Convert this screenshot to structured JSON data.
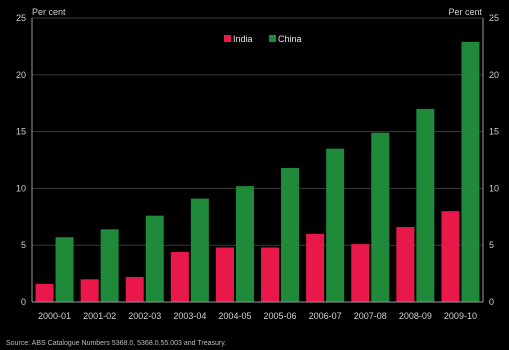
{
  "chart_data": {
    "type": "bar",
    "categories": [
      "2000-01",
      "2001-02",
      "2002-03",
      "2003-04",
      "2004-05",
      "2005-06",
      "2006-07",
      "2007-08",
      "2008-09",
      "2009-10"
    ],
    "series": [
      {
        "name": "India",
        "color": "#e8184a",
        "values": [
          1.6,
          2.0,
          2.2,
          4.4,
          4.8,
          4.8,
          6.0,
          5.1,
          6.6,
          8.0
        ]
      },
      {
        "name": "China",
        "color": "#1f8a3a",
        "values": [
          5.7,
          6.4,
          7.6,
          9.1,
          10.2,
          11.8,
          13.5,
          14.9,
          17.0,
          22.9
        ]
      }
    ],
    "ylim": [
      0,
      25
    ],
    "yticks": [
      0,
      5,
      10,
      15,
      20,
      25
    ],
    "ylabel_left": "Per cent",
    "ylabel_right": "Per cent",
    "grid": true,
    "legend_position": "top-center",
    "source": "Source:  ABS Catalogue Numbers 5368.0, 5368.0.55.003 and Treasury."
  }
}
